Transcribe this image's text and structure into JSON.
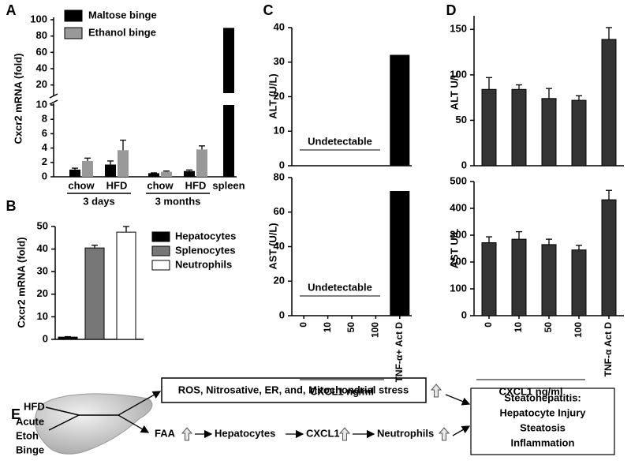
{
  "chart_data": [
    {
      "type": "bar",
      "panel": "A",
      "ylabel": "Cxcr2 mRNA (fold)",
      "categories": [
        "chow",
        "HFD",
        "chow",
        "HFD",
        "spleen"
      ],
      "groups": [
        "3 days",
        "3 months"
      ],
      "series": [
        {
          "name": "Maltose binge",
          "color": "#000000",
          "values": [
            1.0,
            1.7,
            0.5,
            0.8,
            90
          ],
          "errors": [
            0.2,
            0.5,
            0.05,
            0.15,
            null
          ]
        },
        {
          "name": "Ethanol binge",
          "color": "#999999",
          "values": [
            2.2,
            3.7,
            0.7,
            3.8,
            null
          ],
          "errors": [
            0.4,
            1.4,
            0.1,
            0.5,
            null
          ]
        }
      ],
      "ylim_lower": [
        0,
        10
      ],
      "yticks_lower": [
        0,
        2,
        4,
        6,
        8,
        10
      ],
      "ylim_upper": [
        10,
        100
      ],
      "yticks_upper": [
        20,
        40,
        60,
        80,
        100
      ]
    },
    {
      "type": "bar",
      "panel": "B",
      "ylabel": "Cxcr2 mRNA (fold)",
      "categories": [
        "Hepatocytes",
        "Splenocytes",
        "Neutrophils"
      ],
      "colors": [
        "#000000",
        "#777777",
        "#ffffff"
      ],
      "values": [
        1,
        40.5,
        47.5
      ],
      "errors": [
        0.2,
        1.2,
        2.5
      ],
      "ylim": [
        0,
        50
      ],
      "yticks": [
        0,
        10,
        20,
        30,
        40,
        50
      ]
    },
    {
      "type": "bar",
      "panel": "C",
      "ylabel": "ALT (U/L)",
      "values": [
        null,
        null,
        null,
        null,
        32
      ],
      "color": "#000000",
      "ylim": [
        0,
        40
      ],
      "yticks": [
        0,
        10,
        20,
        30,
        40
      ],
      "annotation": "Undetectable"
    },
    {
      "type": "bar",
      "ylabel": "AST (U/L)",
      "categories": [
        "0",
        "10",
        "50",
        "100",
        "TNF-α+ Act D"
      ],
      "xlabel": "CXCL1 ng/ml",
      "values": [
        null,
        null,
        null,
        null,
        72
      ],
      "color": "#000000",
      "ylim": [
        0,
        80
      ],
      "yticks": [
        0,
        20,
        40,
        60,
        80
      ],
      "annotation": "Undetectable"
    },
    {
      "type": "bar",
      "panel": "D",
      "ylabel": "ALT U/L",
      "values": [
        84,
        84,
        74,
        72,
        139
      ],
      "errors": [
        13,
        5,
        11,
        5,
        13
      ],
      "color": "#333333",
      "ylim": [
        0,
        165
      ],
      "yticks": [
        0,
        50,
        100,
        150
      ]
    },
    {
      "type": "bar",
      "ylabel": "AST U/L",
      "categories": [
        "0",
        "10",
        "50",
        "100",
        "TNF-α Act D"
      ],
      "xlabel": "CXCL1 ng/ml",
      "values": [
        272,
        285,
        265,
        245,
        432
      ],
      "errors": [
        22,
        28,
        20,
        17,
        35
      ],
      "color": "#333333",
      "ylim": [
        0,
        500
      ],
      "yticks": [
        0,
        100,
        200,
        300,
        400,
        500
      ]
    }
  ],
  "diagram": {
    "panel": "E",
    "hfd": "HFD",
    "binge": [
      "Acute",
      "Etoh",
      "Binge"
    ],
    "stress": "ROS, Nitrosative, ER, and, Mitochondrial stress",
    "pathway": [
      "FAA",
      "Hepatocytes",
      "CXCL1",
      "Neutrophils"
    ],
    "outcome": [
      "Steatohepatitis:",
      "Hepatocyte Injury",
      "Steatosis",
      "Inflammation"
    ]
  }
}
